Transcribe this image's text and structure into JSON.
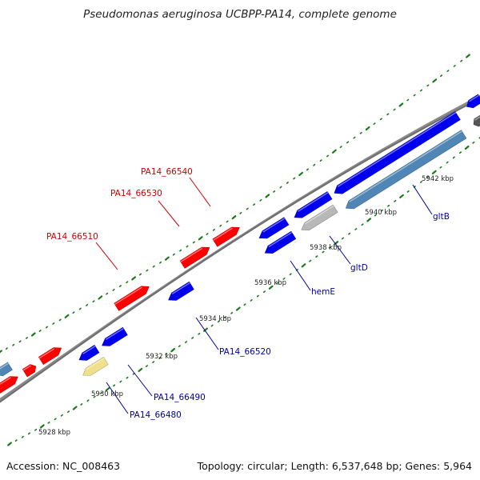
{
  "title": "Pseudomonas aeruginosa UCBPP-PA14, complete genome",
  "footer": {
    "accession": "Accession: NC_008463",
    "summary": "Topology: circular; Length: 6,537,648 bp; Genes: 5,964"
  },
  "colors": {
    "backbone": "#8a8a8a",
    "forward_gene": "#ff0000",
    "reverse_gene": "#0000ee",
    "rrna": "#4f86b5",
    "pseudo": "#f0e08c",
    "gray_gene": "#b8b8b8",
    "dark_gene": "#555555",
    "tick": "#1a7a1a",
    "forward_label": "#cc0000",
    "reverse_label": "#00009a"
  },
  "tick_labels": [
    "5928 kbp",
    "5930 kbp",
    "5932 kbp",
    "5934 kbp",
    "5936 kbp",
    "5938 kbp",
    "5940 kbp",
    "5942 kbp"
  ],
  "gene_labels": [
    {
      "text": "PA14_66540",
      "strand": "forward"
    },
    {
      "text": "PA14_66530",
      "strand": "forward"
    },
    {
      "text": "PA14_66510",
      "strand": "forward"
    },
    {
      "text": "gltB",
      "strand": "reverse"
    },
    {
      "text": "gltD",
      "strand": "reverse"
    },
    {
      "text": "hemE",
      "strand": "reverse"
    },
    {
      "text": "PA14_66520",
      "strand": "reverse"
    },
    {
      "text": "PA14_66490",
      "strand": "reverse"
    },
    {
      "text": "PA14_66480",
      "strand": "reverse"
    }
  ]
}
